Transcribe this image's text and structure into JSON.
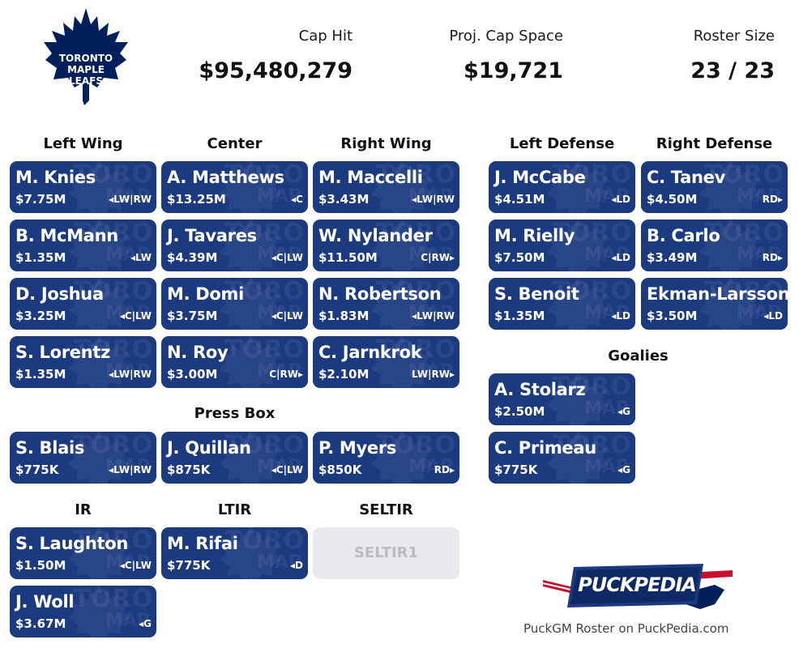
{
  "team": {
    "logo_text": [
      "TORONTO",
      "MAPLE",
      "LEAFS"
    ]
  },
  "stats": {
    "cap_hit_label": "Cap Hit",
    "cap_hit": "$95,480,279",
    "cap_space_label": "Proj. Cap Space",
    "cap_space": "$19,721",
    "roster_label": "Roster Size",
    "roster": "23 / 23"
  },
  "sections": {
    "left_wing": "Left Wing",
    "center": "Center",
    "right_wing": "Right Wing",
    "left_defense": "Left Defense",
    "right_defense": "Right Defense",
    "goalies": "Goalies",
    "press_box": "Press Box",
    "ir": "IR",
    "ltir": "LTIR",
    "seltir": "SELTIR"
  },
  "left_wing": [
    {
      "name": "M. Knies",
      "cap": "$7.75M",
      "pos": "◂LW|RW"
    },
    {
      "name": "B. McMann",
      "cap": "$1.35M",
      "pos": "◂LW"
    },
    {
      "name": "D. Joshua",
      "cap": "$3.25M",
      "pos": "◂C|LW"
    },
    {
      "name": "S. Lorentz",
      "cap": "$1.35M",
      "pos": "◂LW|RW"
    }
  ],
  "center": [
    {
      "name": "A. Matthews",
      "cap": "$13.25M",
      "pos": "◂C"
    },
    {
      "name": "J. Tavares",
      "cap": "$4.39M",
      "pos": "◂C|LW"
    },
    {
      "name": "M. Domi",
      "cap": "$3.75M",
      "pos": "◂C|LW"
    },
    {
      "name": "N. Roy",
      "cap": "$3.00M",
      "pos": "C|RW▸"
    }
  ],
  "right_wing": [
    {
      "name": "M. Maccelli",
      "cap": "$3.43M",
      "pos": "◂LW|RW"
    },
    {
      "name": "W. Nylander",
      "cap": "$11.50M",
      "pos": "C|RW▸"
    },
    {
      "name": "N. Robertson",
      "cap": "$1.83M",
      "pos": "◂LW|RW"
    },
    {
      "name": "C. Jarnkrok",
      "cap": "$2.10M",
      "pos": "LW|RW▸"
    }
  ],
  "left_defense": [
    {
      "name": "J. McCabe",
      "cap": "$4.51M",
      "pos": "◂LD"
    },
    {
      "name": "M. Rielly",
      "cap": "$7.50M",
      "pos": "◂LD"
    },
    {
      "name": "S. Benoit",
      "cap": "$1.35M",
      "pos": "◂LD"
    }
  ],
  "right_defense": [
    {
      "name": "C. Tanev",
      "cap": "$4.50M",
      "pos": "RD▸"
    },
    {
      "name": "B. Carlo",
      "cap": "$3.49M",
      "pos": "RD▸"
    },
    {
      "name": "Ekman-Larsson",
      "cap": "$3.50M",
      "pos": "◂LD"
    }
  ],
  "goalies": [
    {
      "name": "A. Stolarz",
      "cap": "$2.50M",
      "pos": "◂G"
    },
    {
      "name": "C. Primeau",
      "cap": "$775K",
      "pos": "◂G"
    }
  ],
  "press_box": [
    {
      "name": "S. Blais",
      "cap": "$775K",
      "pos": "◂LW|RW"
    },
    {
      "name": "J. Quillan",
      "cap": "$875K",
      "pos": "◂C|LW"
    },
    {
      "name": "P. Myers",
      "cap": "$850K",
      "pos": "RD▸"
    }
  ],
  "ir": [
    {
      "name": "S. Laughton",
      "cap": "$1.50M",
      "pos": "◂C|LW"
    },
    {
      "name": "J. Woll",
      "cap": "$3.67M",
      "pos": "◂G"
    }
  ],
  "ltir": [
    {
      "name": "M. Rifai",
      "cap": "$775K",
      "pos": "◂D"
    }
  ],
  "seltir": {
    "empty_label": "SELTIR1"
  },
  "footer": {
    "brand": "PUCKPEDIA",
    "caption": "PuckGM Roster on PuckPedia.com"
  },
  "colors": {
    "card_bg": "#1b3a80",
    "empty_bg": "#e8e9ec",
    "logo_blue": "#00205b"
  }
}
